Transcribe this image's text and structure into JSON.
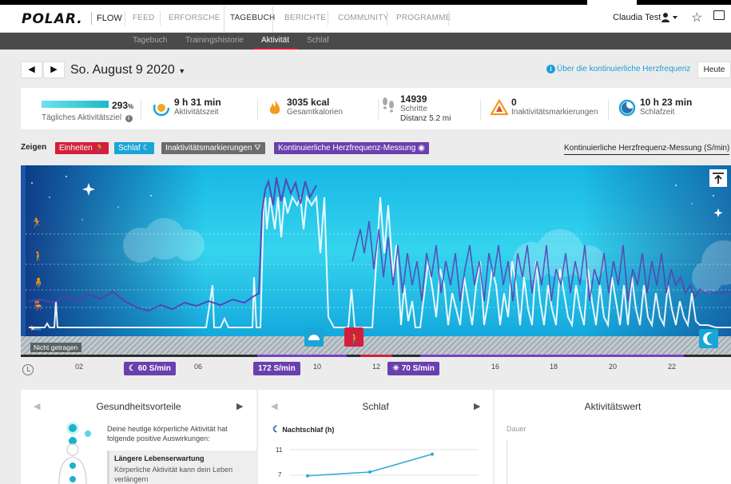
{
  "nav": {
    "logo": "POLAR.",
    "product": "FLOW",
    "items": [
      "FEED",
      "ERFORSCHE",
      "TAGEBUCH",
      "BERICHTE",
      "COMMUNITY",
      "PROGRAMME"
    ],
    "active": "TAGEBUCH",
    "user": "Claudia Test"
  },
  "subnav": {
    "items": [
      "Tagebuch",
      "Trainingshistorie",
      "Aktivität",
      "Schlaf"
    ],
    "active": "Aktivität"
  },
  "datebar": {
    "date": "So. August 9 2020",
    "info_link": "Über die kontinuierliche Herzfrequenz",
    "today_button": "Heute"
  },
  "summary": {
    "goal": {
      "value": "293",
      "unit": "%",
      "label": "Tägliches Aktivitätsziel",
      "fill_percent": 100
    },
    "activity_time": {
      "value": "9 h 31 min",
      "label": "Aktivitätszeit"
    },
    "calories": {
      "value": "3035 kcal",
      "label": "Gesamtkalorien"
    },
    "steps": {
      "value": "14939",
      "label": "Schritte",
      "distance": "Distanz 5.2 mi"
    },
    "inactivity": {
      "value": "0",
      "label": "Inaktivitätsmarkierungen"
    },
    "sleep": {
      "value": "10 h 23 min",
      "label": "Schlafzeit"
    }
  },
  "filters": {
    "label": "Zeigen",
    "tags": [
      {
        "text": "Einheiten",
        "color": "#d41f3c"
      },
      {
        "text": "Schlaf",
        "color": "#1aa5d8"
      },
      {
        "text": "Inaktivitätsmarkierungen",
        "color": "#6c6c6c"
      },
      {
        "text": "Kontinuierliche Herzfrequenz-Messung",
        "color": "#6a3fae"
      }
    ],
    "selector": "Kontinuierliche Herzfrequenz-Messung (S/min)"
  },
  "chart": {
    "not_worn_label": "Nicht getragen",
    "time_ticks": [
      "02",
      "06",
      "10",
      "12",
      "16",
      "18",
      "20",
      "22"
    ],
    "hr_markers": [
      {
        "text": "60 S/min",
        "icon": "moon-icon"
      },
      {
        "text": "172 S/min",
        "icon": "none"
      },
      {
        "text": "70 S/min",
        "icon": "sun-icon"
      }
    ]
  },
  "panels": {
    "health": {
      "title": "Gesundheitsvorteile",
      "intro": "Deine heutige körperliche Aktivität hat folgende positive Auswirkungen:",
      "benefit_title": "Längere Lebenserwartung",
      "benefit_text": "Körperliche Aktivität kann dein Leben verlängern"
    },
    "sleep": {
      "title": "Schlaf",
      "subtitle": "Nachtschlaf (h)",
      "ticks": [
        "11",
        "7"
      ],
      "values": [
        6.9,
        7.5,
        10.3
      ]
    },
    "activity_value": {
      "title": "Aktivitätswert",
      "label": "Dauer"
    }
  },
  "colors": {
    "accent": "#e31937",
    "hr_purple": "#6a3fae",
    "sky_blue": "#1aa5d8"
  }
}
